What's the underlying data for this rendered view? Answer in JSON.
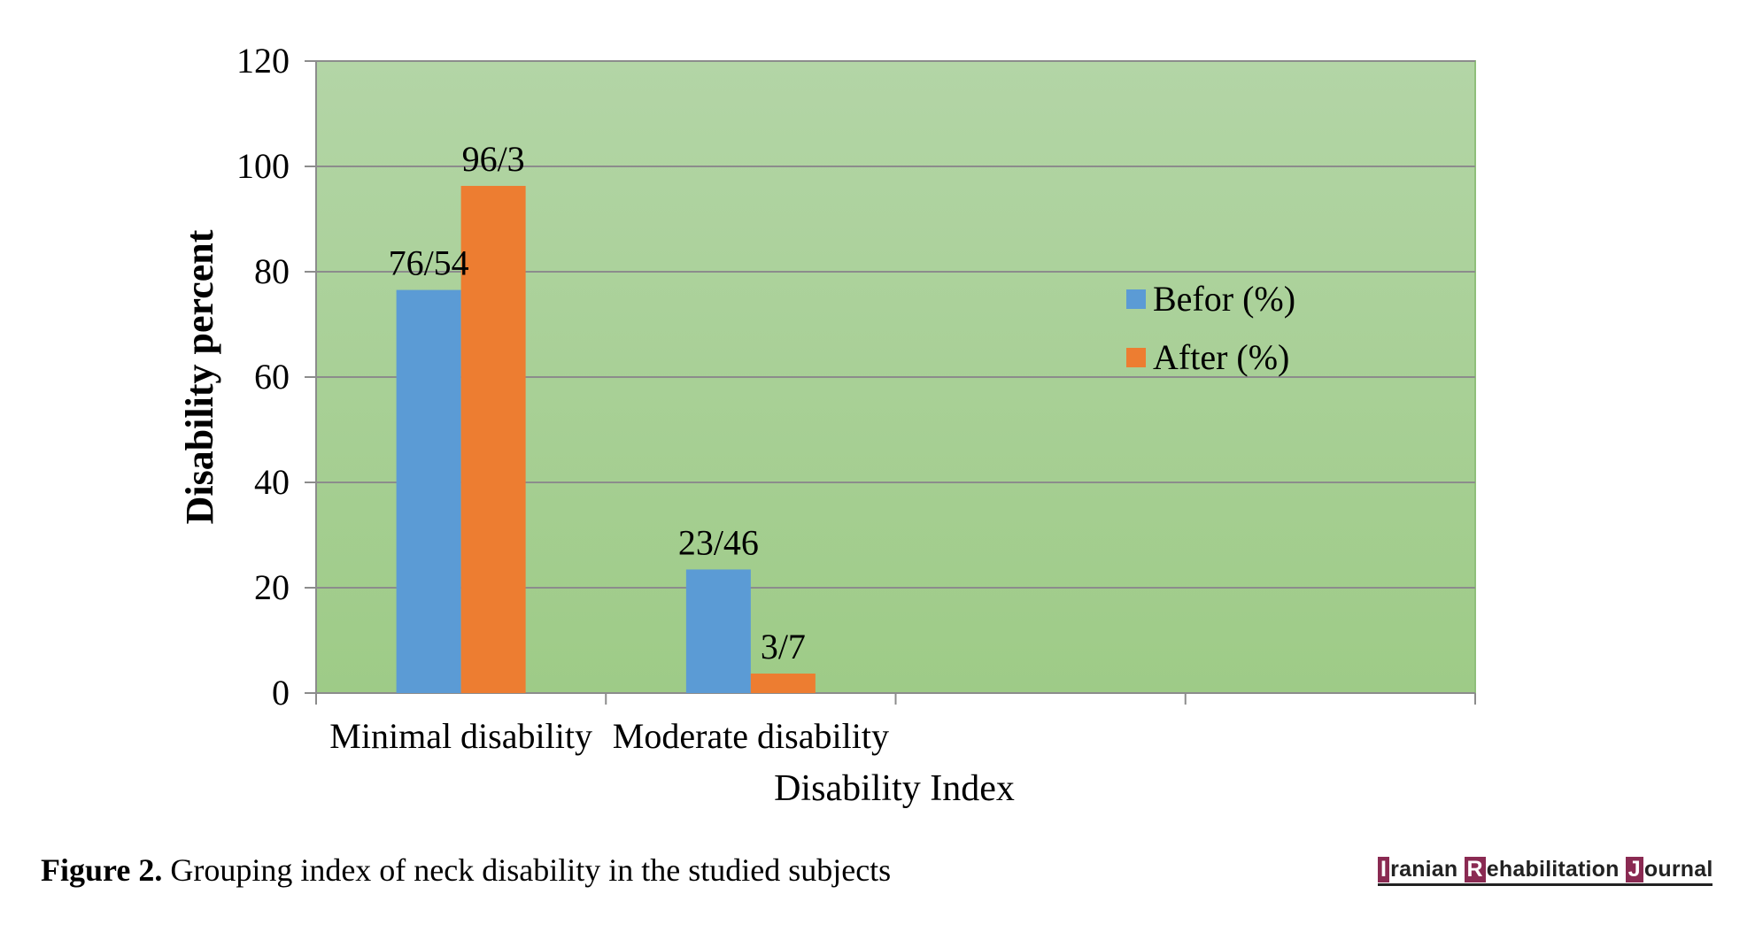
{
  "chart_data": {
    "type": "bar",
    "categories": [
      "Minimal disability",
      "Moderate disability",
      "",
      ""
    ],
    "series": [
      {
        "name": "Befor (%)",
        "values": [
          76.54,
          23.46,
          null,
          null
        ],
        "labels": [
          "76/54",
          "23/46",
          "",
          ""
        ],
        "color": "#5b9bd5"
      },
      {
        "name": "After (%)",
        "values": [
          96.3,
          3.7,
          null,
          null
        ],
        "labels": [
          "96/3",
          "3/7",
          "",
          ""
        ],
        "color": "#ed7d31"
      }
    ],
    "xlabel": "Disability Index",
    "ylabel": "Disability percent",
    "ylim": [
      0,
      120
    ],
    "yticks": [
      0,
      20,
      40,
      60,
      80,
      100,
      120
    ],
    "grid": true,
    "legend_position": "right",
    "plot_background": [
      "#b3d5a6",
      "#9ecb87"
    ]
  },
  "caption": {
    "label": "Figure 2.",
    "text": " Grouping index of neck disability in the studied subjects"
  },
  "journal": {
    "parts": [
      {
        "initial": "I",
        "rest": "ranian "
      },
      {
        "initial": "R",
        "rest": "ehabilitation "
      },
      {
        "initial": "J",
        "rest": "ournal"
      }
    ]
  }
}
